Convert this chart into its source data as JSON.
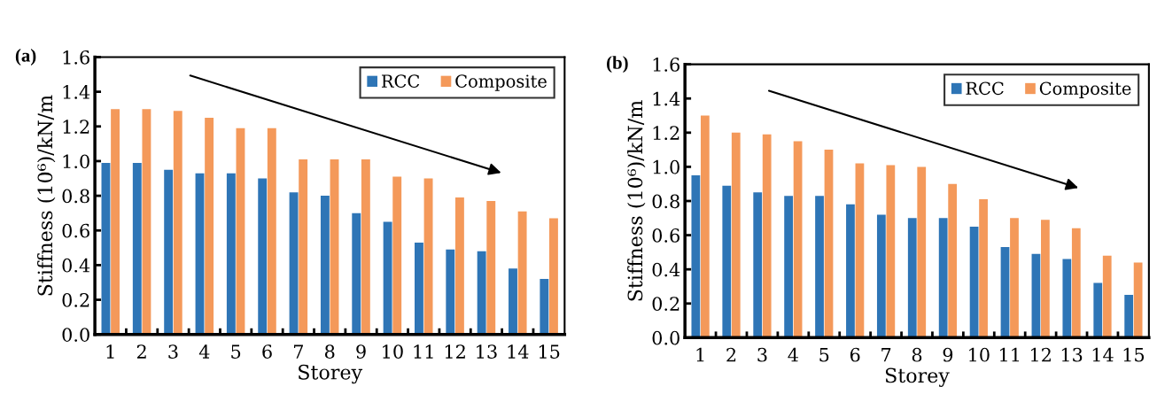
{
  "chart_data": [
    {
      "type": "bar",
      "title": "(a)",
      "xlabel": "Storey",
      "ylabel": "Stiffness (10⁶)/kN/m",
      "categories": [
        "1",
        "2",
        "3",
        "4",
        "5",
        "6",
        "7",
        "8",
        "9",
        "10",
        "11",
        "12",
        "13",
        "14",
        "15"
      ],
      "series": [
        {
          "name": "RCC",
          "color": "#2e75b6",
          "values": [
            0.99,
            0.99,
            0.95,
            0.93,
            0.93,
            0.9,
            0.82,
            0.8,
            0.7,
            0.65,
            0.53,
            0.49,
            0.48,
            0.38,
            0.32
          ]
        },
        {
          "name": "Composite",
          "color": "#f4995a",
          "values": [
            1.3,
            1.3,
            1.29,
            1.25,
            1.19,
            1.19,
            1.01,
            1.01,
            1.01,
            0.91,
            0.9,
            0.79,
            0.77,
            0.71,
            0.67
          ]
        }
      ],
      "ylim": [
        0.0,
        1.6
      ],
      "yticks": [
        {
          "value": 0.0,
          "label": "0.0"
        },
        {
          "value": 0.2,
          "label": "0.2"
        },
        {
          "value": 0.4,
          "label": "0.4"
        },
        {
          "value": 0.6,
          "label": "0.6"
        },
        {
          "value": 0.8,
          "label": "0.8"
        },
        {
          "value": 1.0,
          "label": "1.0"
        },
        {
          "value": 1.2,
          "label": "1.2"
        },
        {
          "value": 1.4,
          "label": "1.4"
        },
        {
          "value": 1.6,
          "label": "1.6"
        }
      ],
      "grid": false,
      "legend": "top right"
    },
    {
      "type": "bar",
      "title": "(b)",
      "xlabel": "Storey",
      "ylabel": "Stiffness (10⁶)/kN/m",
      "categories": [
        "1",
        "2",
        "3",
        "4",
        "5",
        "6",
        "7",
        "8",
        "9",
        "10",
        "11",
        "12",
        "13",
        "14",
        "15"
      ],
      "series": [
        {
          "name": "RCC",
          "color": "#2e75b6",
          "values": [
            0.95,
            0.89,
            0.85,
            0.83,
            0.83,
            0.78,
            0.72,
            0.7,
            0.7,
            0.65,
            0.53,
            0.49,
            0.46,
            0.32,
            0.25
          ]
        },
        {
          "name": "Composite",
          "color": "#f4995a",
          "values": [
            1.3,
            1.2,
            1.19,
            1.15,
            1.1,
            1.02,
            1.01,
            1.0,
            0.9,
            0.81,
            0.7,
            0.69,
            0.64,
            0.48,
            0.44
          ]
        }
      ],
      "ylim": [
        0.0,
        1.6
      ],
      "yticks": [
        {
          "value": 0.0,
          "label": "0.0"
        },
        {
          "value": 0.2,
          "label": "0.2"
        },
        {
          "value": 0.4,
          "label": "0.4"
        },
        {
          "value": 0.6,
          "label": "0.6"
        },
        {
          "value": 0.8,
          "label": "0.8"
        },
        {
          "value": 1.0,
          "label": "1.0"
        },
        {
          "value": 1.2,
          "label": "1.2"
        },
        {
          "value": 1.4,
          "label": "1.4"
        },
        {
          "value": 1.6,
          "label": "1.6"
        }
      ],
      "grid": false,
      "legend": "top right"
    }
  ]
}
